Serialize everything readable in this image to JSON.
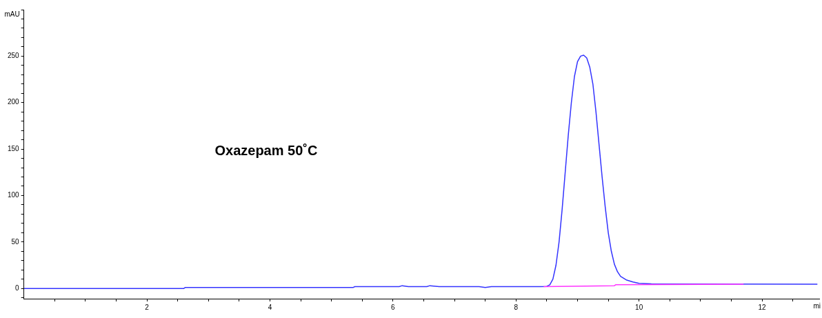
{
  "chart_data": {
    "type": "line",
    "xlabel": "mi",
    "ylabel": "mAU",
    "annotations": [
      "Oxazepam 50˚C"
    ],
    "xlim": [
      0,
      12.93
    ],
    "ylim": [
      -11,
      300
    ],
    "xticks": [
      {
        "value": 0.5,
        "label": null
      },
      {
        "value": 1,
        "label": null
      },
      {
        "value": 1.5,
        "label": null
      },
      2,
      {
        "value": 2.5,
        "label": null
      },
      {
        "value": 3,
        "label": null
      },
      {
        "value": 3.5,
        "label": null
      },
      4,
      {
        "value": 4.5,
        "label": null
      },
      {
        "value": 5,
        "label": null
      },
      {
        "value": 5.5,
        "label": null
      },
      6,
      {
        "value": 6.5,
        "label": null
      },
      {
        "value": 7,
        "label": null
      },
      {
        "value": 7.5,
        "label": null
      },
      8,
      {
        "value": 8.5,
        "label": null
      },
      {
        "value": 9,
        "label": null
      },
      {
        "value": 9.5,
        "label": null
      },
      10,
      {
        "value": 10.5,
        "label": null
      },
      {
        "value": 11,
        "label": null
      },
      {
        "value": 11.5,
        "label": null
      },
      12,
      {
        "value": 12.5,
        "label": null
      }
    ],
    "yticks": [
      {
        "value": -10,
        "label": null
      },
      0,
      {
        "value": 10,
        "label": null
      },
      {
        "value": 20,
        "label": null
      },
      {
        "value": 30,
        "label": null
      },
      {
        "value": 40,
        "label": null
      },
      50,
      {
        "value": 60,
        "label": null
      },
      {
        "value": 70,
        "label": null
      },
      {
        "value": 80,
        "label": null
      },
      {
        "value": 90,
        "label": null
      },
      100,
      {
        "value": 110,
        "label": null
      },
      {
        "value": 120,
        "label": null
      },
      {
        "value": 130,
        "label": null
      },
      {
        "value": 140,
        "label": null
      },
      150,
      {
        "value": 160,
        "label": null
      },
      {
        "value": 170,
        "label": null
      },
      {
        "value": 180,
        "label": null
      },
      {
        "value": 190,
        "label": null
      },
      200,
      {
        "value": 210,
        "label": null
      },
      {
        "value": 220,
        "label": null
      },
      {
        "value": 230,
        "label": null
      },
      {
        "value": 240,
        "label": null
      },
      250,
      {
        "value": 260,
        "label": null
      },
      {
        "value": 270,
        "label": null
      },
      {
        "value": 280,
        "label": null
      },
      {
        "value": 290,
        "label": null
      },
      {
        "value": 300,
        "label": null
      }
    ],
    "grid": false,
    "legend": false,
    "marker": "none",
    "line_style": "solid",
    "series": [
      {
        "color": "#ff33ff",
        "x": [
          8.45,
          9.6,
          9.62,
          11.7
        ],
        "values": [
          2,
          3,
          4,
          4.5
        ]
      },
      {
        "color": "#3333ff",
        "x": [
          0,
          2.6,
          2.62,
          5.35,
          5.38,
          6.1,
          6.15,
          6.25,
          6.55,
          6.6,
          6.75,
          7.4,
          7.5,
          7.6,
          8.4,
          8.5,
          8.55,
          8.6,
          8.65,
          8.7,
          8.75,
          8.8,
          8.85,
          8.9,
          8.95,
          9.0,
          9.05,
          9.1,
          9.15,
          9.2,
          9.25,
          9.3,
          9.35,
          9.4,
          9.45,
          9.5,
          9.55,
          9.6,
          9.65,
          9.7,
          9.8,
          9.9,
          10.0,
          10.2,
          12.9
        ],
        "values": [
          0,
          0,
          1,
          1,
          2,
          2,
          3,
          2,
          2,
          3,
          2,
          2,
          1,
          2,
          2,
          2.2,
          4,
          10,
          25,
          50,
          85,
          125,
          165,
          200,
          228,
          244,
          250,
          251,
          248,
          238,
          220,
          190,
          155,
          120,
          88,
          60,
          40,
          26,
          18,
          13,
          9,
          7,
          5.5,
          5,
          4.5
        ]
      }
    ]
  }
}
